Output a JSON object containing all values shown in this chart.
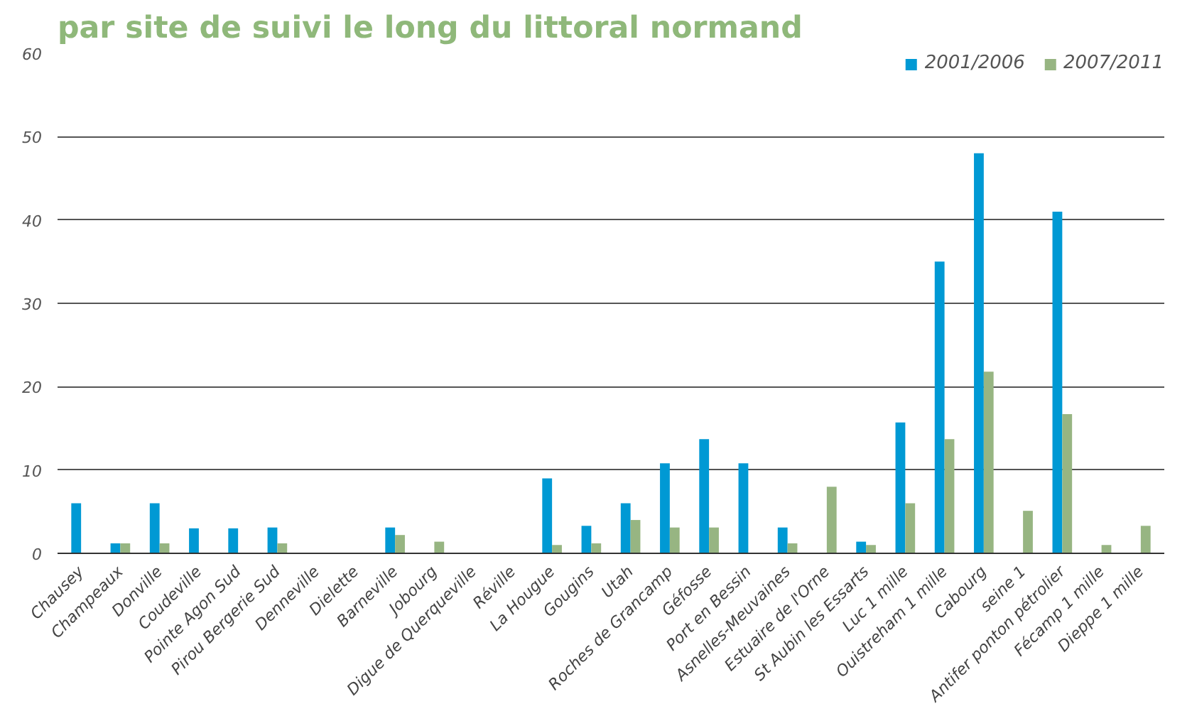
{
  "chart_data": {
    "type": "bar",
    "title": "par site de suivi le long du littoral normand",
    "categories": [
      "Chausey",
      "Champeaux",
      "Donville",
      "Coudeville",
      "Pointe Agon Sud",
      "Pirou Bergerie Sud",
      "Denneville",
      "Dielette",
      "Barneville",
      "Jobourg",
      "Digue de Querqueville",
      "Réville",
      "La Hougue",
      "Gougins",
      "Utah",
      "Roches de Grancamp",
      "Géfosse",
      "Port en Bessin",
      "Asnelles-Meuvaines",
      "Estuaire de l'Orne",
      "St Aubin les Essarts",
      "Luc 1 mille",
      "Ouistreham 1 mille",
      "Cabourg",
      "seine 1",
      "Antifer ponton pétrolier",
      "Fécamp 1 mille",
      "Dieppe 1 mille"
    ],
    "series": [
      {
        "name": "2001/2006",
        "color": "#0099d4",
        "values": [
          6,
          1.2,
          6,
          3,
          3,
          3.1,
          null,
          null,
          3.1,
          null,
          null,
          null,
          9,
          3.3,
          6,
          10.8,
          13.7,
          10.8,
          3.1,
          null,
          1.4,
          15.7,
          35,
          48,
          null,
          41,
          null,
          null
        ]
      },
      {
        "name": "2007/2011",
        "color": "#97b582",
        "values": [
          null,
          1.2,
          1.2,
          null,
          null,
          1.2,
          null,
          null,
          2.2,
          1.4,
          null,
          null,
          1,
          1.2,
          4,
          3.1,
          3.1,
          null,
          1.2,
          8,
          1,
          6,
          13.7,
          21.8,
          5.1,
          16.7,
          1,
          3.3
        ]
      }
    ],
    "ylim": [
      0,
      60
    ],
    "yticks": [
      0,
      10,
      20,
      30,
      40,
      50,
      60
    ],
    "grid": "y",
    "legend": "top right"
  }
}
